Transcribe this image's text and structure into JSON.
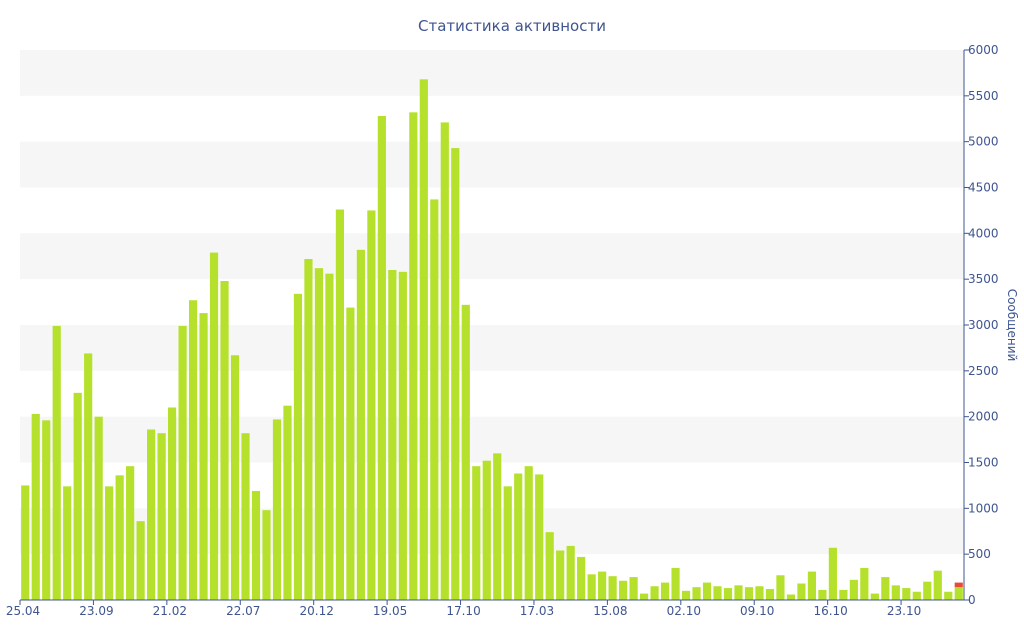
{
  "chart_data": {
    "type": "bar",
    "title": "Статистика активности",
    "xlabel": "",
    "ylabel": "Сообщений",
    "y_axis_position": "right",
    "ylim": [
      0,
      6000
    ],
    "y_ticks": [
      0,
      500,
      1000,
      1500,
      2000,
      2500,
      3000,
      3500,
      4000,
      4500,
      5000,
      5500,
      6000
    ],
    "x_tick_labels": [
      {
        "index": 0,
        "label": "25.04"
      },
      {
        "index": 7,
        "label": "23.09"
      },
      {
        "index": 14,
        "label": "21.02"
      },
      {
        "index": 21,
        "label": "22.07"
      },
      {
        "index": 28,
        "label": "20.12"
      },
      {
        "index": 35,
        "label": "19.05"
      },
      {
        "index": 42,
        "label": "17.10"
      },
      {
        "index": 49,
        "label": "17.03"
      },
      {
        "index": 56,
        "label": "15.08"
      },
      {
        "index": 63,
        "label": "02.10"
      },
      {
        "index": 70,
        "label": "09.10"
      },
      {
        "index": 77,
        "label": "16.10"
      },
      {
        "index": 84,
        "label": "23.10"
      }
    ],
    "grid": "horizontal bands",
    "legend": "none",
    "colors": {
      "bar": "#b5e12c",
      "highlight": "#e84a3a",
      "band": "#f6f6f6",
      "axis": "#3f5590"
    },
    "series": [
      {
        "values": [
          1250,
          2030,
          1960,
          2990,
          1240,
          2260,
          2690,
          2000,
          1240,
          1360,
          1460,
          860,
          1860,
          1820,
          2100,
          2990,
          3270,
          3130,
          3790,
          3480,
          2670,
          1820,
          1190,
          980,
          1970,
          2120,
          3340,
          3720,
          3620,
          3560,
          4260,
          3190,
          3820,
          4250,
          5280,
          3600,
          3580,
          5320,
          5680,
          4370,
          5210,
          4930,
          3220,
          1460,
          1520,
          1600,
          1240,
          1380,
          1460,
          1370,
          740,
          540,
          590,
          470,
          280,
          310,
          260,
          210,
          250,
          70,
          150,
          190,
          350,
          100,
          140,
          190,
          150,
          130,
          160,
          140,
          150,
          120,
          270,
          60,
          180,
          310,
          110,
          570,
          110,
          220,
          350,
          70,
          250,
          160,
          130,
          90,
          200,
          320,
          90,
          140
        ]
      }
    ],
    "last_bar_overlay": 50
  }
}
